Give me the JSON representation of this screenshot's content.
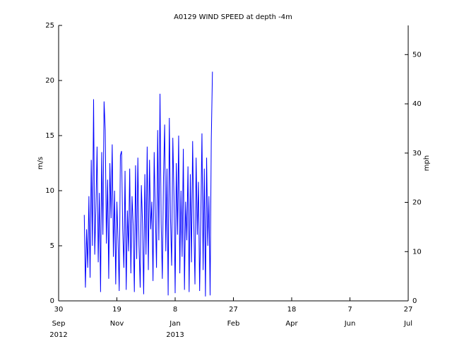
{
  "chart_data": {
    "type": "line",
    "title": "A0129 WIND SPEED at depth -4m",
    "y_label": "m/s",
    "y2_label": "mph",
    "xlim": [
      "2012-09-30",
      "2013-07-27"
    ],
    "xticks": [
      {
        "value": "2012-09-30",
        "label": "30",
        "month": "Sep",
        "year": "2012"
      },
      {
        "value": "2012-11-19",
        "label": "19",
        "month": "Nov"
      },
      {
        "value": "2013-01-08",
        "label": "8",
        "month": "Jan",
        "year": "2013"
      },
      {
        "value": "2013-02-27",
        "label": "27",
        "month": "Feb"
      },
      {
        "value": "2013-04-18",
        "label": "18",
        "month": "Apr"
      },
      {
        "value": "2013-06-07",
        "label": "7",
        "month": "Jun"
      },
      {
        "value": "2013-07-27",
        "label": "27",
        "month": "Jul"
      }
    ],
    "ylim": [
      0,
      25
    ],
    "yticks": [
      0,
      5,
      10,
      15,
      20,
      25
    ],
    "y2lim": [
      0,
      55.92
    ],
    "y2ticks": [
      0,
      10,
      20,
      30,
      40,
      50
    ],
    "x": [
      "2012-10-22",
      "2012-10-23",
      "2012-10-24",
      "2012-10-25",
      "2012-10-26",
      "2012-10-27",
      "2012-10-28",
      "2012-10-29",
      "2012-10-30",
      "2012-10-31",
      "2012-11-01",
      "2012-11-02",
      "2012-11-03",
      "2012-11-04",
      "2012-11-05",
      "2012-11-06",
      "2012-11-07",
      "2012-11-08",
      "2012-11-09",
      "2012-11-10",
      "2012-11-11",
      "2012-11-12",
      "2012-11-13",
      "2012-11-14",
      "2012-11-15",
      "2012-11-16",
      "2012-11-17",
      "2012-11-18",
      "2012-11-19",
      "2012-11-20",
      "2012-11-21",
      "2012-11-22",
      "2012-11-23",
      "2012-11-24",
      "2012-11-25",
      "2012-11-26",
      "2012-11-27",
      "2012-11-28",
      "2012-11-29",
      "2012-11-30",
      "2012-12-01",
      "2012-12-02",
      "2012-12-03",
      "2012-12-04",
      "2012-12-05",
      "2012-12-06",
      "2012-12-07",
      "2012-12-08",
      "2012-12-09",
      "2012-12-10",
      "2012-12-11",
      "2012-12-12",
      "2012-12-13",
      "2012-12-14",
      "2012-12-15",
      "2012-12-16",
      "2012-12-17",
      "2012-12-18",
      "2012-12-19",
      "2012-12-20",
      "2012-12-21",
      "2012-12-22",
      "2012-12-23",
      "2012-12-24",
      "2012-12-25",
      "2012-12-26",
      "2012-12-27",
      "2012-12-28",
      "2012-12-29",
      "2012-12-30",
      "2012-12-31",
      "2013-01-01",
      "2013-01-02",
      "2013-01-03",
      "2013-01-04",
      "2013-01-05",
      "2013-01-06",
      "2013-01-07",
      "2013-01-08",
      "2013-01-09",
      "2013-01-10",
      "2013-01-11",
      "2013-01-12",
      "2013-01-13",
      "2013-01-14",
      "2013-01-15",
      "2013-01-16",
      "2013-01-17",
      "2013-01-18",
      "2013-01-19",
      "2013-01-20",
      "2013-01-21",
      "2013-01-22",
      "2013-01-23",
      "2013-01-24",
      "2013-01-25",
      "2013-01-26",
      "2013-01-27",
      "2013-01-28",
      "2013-01-29",
      "2013-01-30",
      "2013-01-31",
      "2013-02-01",
      "2013-02-02",
      "2013-02-03",
      "2013-02-04",
      "2013-02-05",
      "2013-02-06",
      "2013-02-07",
      "2013-02-08",
      "2013-02-09"
    ],
    "series": [
      {
        "color": "#0000ff",
        "values": [
          7.8,
          1.2,
          6.5,
          3.0,
          9.5,
          2.1,
          12.8,
          5.0,
          18.3,
          4.2,
          8.5,
          14.0,
          3.5,
          9.8,
          0.8,
          13.5,
          6.0,
          18.1,
          15.5,
          5.2,
          11.0,
          2.0,
          12.5,
          7.5,
          14.2,
          4.0,
          10.0,
          1.5,
          9.0,
          5.5,
          0.9,
          13.2,
          13.6,
          6.5,
          3.0,
          11.8,
          1.0,
          8.2,
          4.5,
          12.0,
          2.5,
          9.5,
          6.8,
          0.8,
          12.3,
          3.8,
          13.0,
          5.0,
          1.2,
          10.5,
          7.0,
          0.6,
          11.5,
          4.2,
          14.0,
          2.8,
          12.8,
          6.5,
          9.0,
          1.8,
          13.5,
          8.0,
          3.0,
          15.5,
          5.5,
          18.8,
          7.0,
          2.0,
          11.2,
          16.0,
          4.5,
          12.0,
          0.5,
          16.6,
          7.5,
          3.2,
          14.8,
          9.5,
          0.7,
          12.5,
          6.0,
          15.0,
          2.5,
          10.0,
          4.0,
          13.8,
          1.0,
          9.0,
          5.5,
          12.2,
          0.8,
          11.5,
          3.5,
          14.5,
          7.0,
          1.5,
          13.0,
          6.0,
          10.8,
          0.9,
          7.5,
          15.2,
          2.8,
          12.0,
          0.4,
          13.0,
          5.0,
          9.5,
          0.5,
          14.6,
          20.8
        ]
      }
    ]
  }
}
